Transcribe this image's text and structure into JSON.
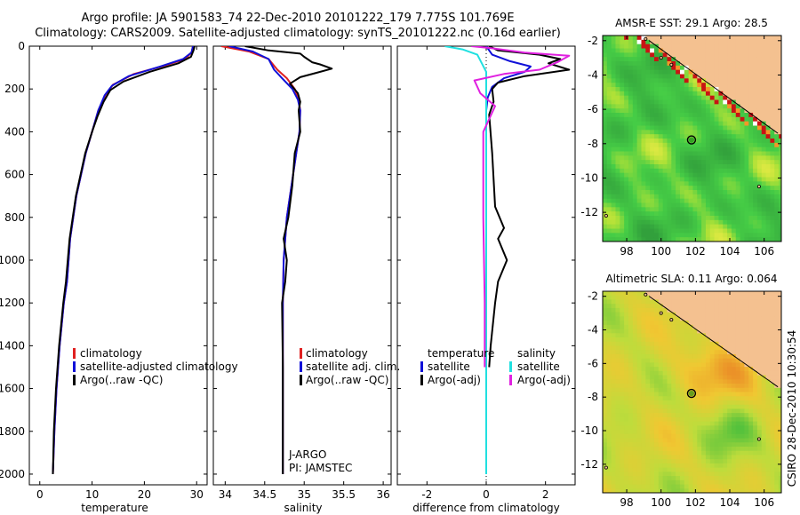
{
  "header": {
    "line1": "Argo profile: JA 5901583_74 22-Dec-2010 20101222_179 7.775S 101.769E",
    "line2": "Climatology: CARS2009. Satellite-adjusted climatology: synTS_20101222.nc (0.16d earlier)"
  },
  "credit": "CSIRO 28-Dec-2010 10:30:54",
  "colors": {
    "climatology": "#e02020",
    "satellite": "#1010d8",
    "argo": "#000000",
    "sal_satellite": "#20e0e0",
    "sal_argo": "#e020e0",
    "land": "#f4c190",
    "float_marker": "#108010"
  },
  "chart_data": [
    {
      "type": "line",
      "panel": "temperature",
      "xlabel": "temperature",
      "ylabel": "",
      "xlim": [
        -2,
        32
      ],
      "ylim": [
        0,
        2050
      ],
      "y_reversed": true,
      "xticks": [
        0,
        10,
        20,
        30
      ],
      "yticks": [
        0,
        200,
        400,
        600,
        800,
        1000,
        1200,
        1400,
        1600,
        1800,
        2000
      ],
      "legend": [
        "climatology",
        "satellite-adjusted climatology",
        "Argo(..raw -QC)"
      ],
      "legend_position": "lower-right",
      "series": [
        {
          "name": "climatology",
          "color_key": "climatology",
          "x": [
            29.3,
            29.0,
            27.8,
            24.0,
            18.0,
            14.0,
            12.5,
            11.2,
            10.0,
            8.8,
            7.0,
            5.8,
            5.2,
            4.6,
            3.8,
            3.2,
            2.8,
            2.5
          ],
          "y": [
            0,
            30,
            60,
            90,
            130,
            180,
            230,
            300,
            400,
            500,
            700,
            900,
            1100,
            1200,
            1400,
            1600,
            1800,
            2000
          ]
        },
        {
          "name": "satellite-adjusted climatology",
          "color_key": "satellite",
          "x": [
            29.3,
            29.0,
            27.4,
            23.0,
            17.0,
            13.8,
            12.4,
            11.2,
            10.0,
            8.8,
            7.0,
            5.8,
            5.2,
            4.6,
            3.8,
            3.2,
            2.8,
            2.5
          ],
          "y": [
            0,
            30,
            60,
            95,
            140,
            185,
            230,
            300,
            400,
            500,
            700,
            900,
            1100,
            1200,
            1400,
            1600,
            1800,
            2000
          ]
        },
        {
          "name": "Argo(..raw -QC)",
          "color_key": "argo",
          "x": [
            29.6,
            29.4,
            28.9,
            26.5,
            21.0,
            16.0,
            13.5,
            12.2,
            11.0,
            10.0,
            8.7,
            6.9,
            5.7,
            5.0,
            4.5,
            3.7,
            3.1,
            2.7,
            2.5
          ],
          "y": [
            0,
            20,
            50,
            80,
            120,
            165,
            205,
            260,
            330,
            400,
            500,
            700,
            900,
            1100,
            1200,
            1400,
            1600,
            1800,
            2000
          ]
        }
      ]
    },
    {
      "type": "line",
      "panel": "salinity",
      "xlabel": "salinity",
      "ylabel": "",
      "xlim": [
        33.85,
        36.1
      ],
      "ylim": [
        0,
        2050
      ],
      "y_reversed": true,
      "xticks": [
        34,
        34.5,
        35,
        35.5,
        36
      ],
      "legend": [
        "climatology",
        "satellite adj. clim.",
        "Argo(..raw -QC)"
      ],
      "legend_position": "lower-right",
      "annotations": [
        "J-ARGO",
        "PI: JAMSTEC"
      ],
      "series": [
        {
          "name": "climatology",
          "color_key": "climatology",
          "x": [
            33.95,
            34.3,
            34.55,
            34.66,
            34.78,
            34.88,
            34.93,
            34.95,
            34.94,
            34.9,
            34.84,
            34.78,
            34.74,
            34.73,
            34.73,
            34.73,
            34.73
          ],
          "y": [
            0,
            25,
            60,
            110,
            150,
            200,
            250,
            300,
            400,
            500,
            650,
            800,
            1000,
            1200,
            1500,
            1800,
            2000
          ]
        },
        {
          "name": "satellite adj. clim.",
          "color_key": "satellite",
          "x": [
            34.05,
            34.35,
            34.55,
            34.62,
            34.72,
            34.85,
            34.92,
            34.95,
            34.94,
            34.9,
            34.84,
            34.78,
            34.74,
            34.73,
            34.73,
            34.73,
            34.73
          ],
          "y": [
            0,
            25,
            60,
            110,
            150,
            200,
            250,
            300,
            400,
            500,
            650,
            800,
            1000,
            1200,
            1500,
            1800,
            2000
          ]
        },
        {
          "name": "Argo(..raw -QC)",
          "color_key": "argo",
          "x": [
            34.25,
            34.55,
            34.95,
            35.0,
            35.1,
            35.2,
            35.35,
            35.15,
            34.95,
            34.82,
            34.92,
            34.95,
            34.93,
            34.95,
            34.88,
            34.85,
            34.8,
            34.74,
            34.78,
            34.76,
            34.72,
            34.73,
            34.73,
            34.73
          ],
          "y": [
            0,
            20,
            35,
            50,
            75,
            85,
            105,
            125,
            145,
            175,
            220,
            260,
            300,
            400,
            500,
            650,
            800,
            900,
            1000,
            1100,
            1200,
            1500,
            1800,
            2000
          ]
        }
      ]
    },
    {
      "type": "line",
      "panel": "difference",
      "xlabel": "difference from climatology",
      "ylabel": "",
      "xlim": [
        -3,
        3
      ],
      "ylim": [
        0,
        2050
      ],
      "y_reversed": true,
      "xticks": [
        -2,
        0,
        2
      ],
      "legend_left_title": "temperature",
      "legend_left": [
        "satellite",
        "Argo(-adj)"
      ],
      "legend_right_title": "salinity",
      "legend_right": [
        "satellite",
        "Argo(-adj)"
      ],
      "legend_position": "lower-center",
      "series": [
        {
          "name": "temperature satellite",
          "color_key": "satellite",
          "x": [
            0,
            0.2,
            0.8,
            1.5,
            1.3,
            0.6,
            0.2,
            0.05,
            0,
            0
          ],
          "y": [
            0,
            40,
            70,
            95,
            120,
            150,
            190,
            240,
            300,
            2000
          ]
        },
        {
          "name": "temperature Argo(-adj)",
          "color_key": "argo",
          "x": [
            0.1,
            0.4,
            1.8,
            2.5,
            2.1,
            2.8,
            1.3,
            0.4,
            0.2,
            0.25,
            0.1,
            0.2,
            0.3,
            0.6,
            0.4,
            0.7,
            0.4,
            0.3,
            0.15,
            0.1
          ],
          "y": [
            0,
            20,
            40,
            60,
            80,
            110,
            140,
            170,
            200,
            260,
            320,
            500,
            750,
            850,
            900,
            1000,
            1100,
            1200,
            1400,
            1500
          ]
        },
        {
          "name": "salinity satellite",
          "color_key": "sal_satellite",
          "x": [
            -1.4,
            -0.8,
            -0.3,
            0,
            0,
            0,
            0
          ],
          "y": [
            0,
            15,
            40,
            120,
            300,
            1000,
            2000
          ]
        },
        {
          "name": "salinity Argo(-adj)",
          "color_key": "sal_argo",
          "x": [
            -0.5,
            0.2,
            1.3,
            2.8,
            2.4,
            1.8,
            0.6,
            -0.4,
            -0.2,
            0.3,
            -0.1,
            -0.1,
            -0.05,
            -0.05
          ],
          "y": [
            0,
            10,
            30,
            45,
            75,
            110,
            130,
            160,
            220,
            280,
            400,
            800,
            1200,
            1500
          ]
        }
      ]
    },
    {
      "type": "heatmap",
      "panel": "sst_map",
      "title": "AMSR-E SST: 29.1 Argo: 28.5",
      "xticks": [
        98,
        100,
        102,
        104,
        106
      ],
      "yticks": [
        -2,
        -4,
        -6,
        -8,
        -10,
        -12
      ],
      "xlim": [
        96.6,
        107
      ],
      "ylim": [
        -13.7,
        -1.7
      ],
      "float_position": {
        "lon": 101.77,
        "lat": -7.78
      }
    },
    {
      "type": "heatmap",
      "panel": "sla_map",
      "title": "Altimetric SLA: 0.11 Argo: 0.064",
      "xticks": [
        98,
        100,
        102,
        104,
        106
      ],
      "yticks": [
        -2,
        -4,
        -6,
        -8,
        -10,
        -12
      ],
      "xlim": [
        96.6,
        107
      ],
      "ylim": [
        -13.7,
        -1.7
      ],
      "float_position": {
        "lon": 101.77,
        "lat": -7.78
      }
    }
  ]
}
